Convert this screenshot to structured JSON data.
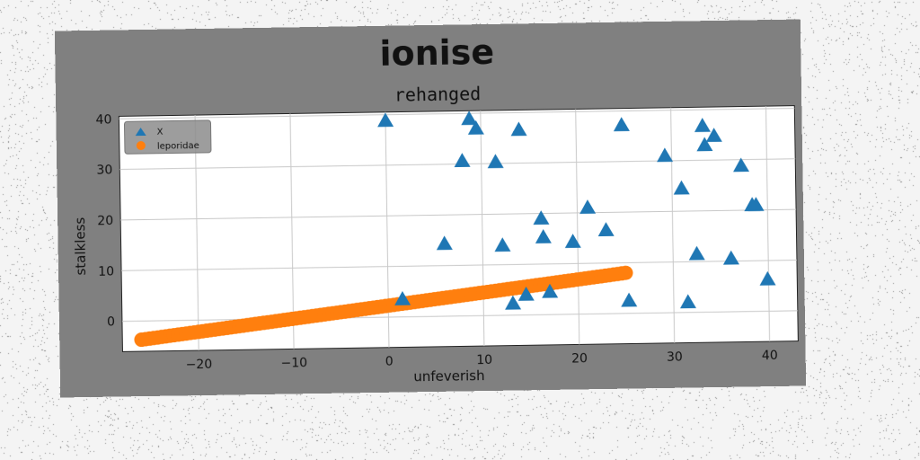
{
  "chart_data": {
    "type": "scatter",
    "title": "ionise",
    "subtitle": "rehanged",
    "xlabel": "unfeverish",
    "ylabel": "stalkless",
    "xlim": [
      -28,
      43
    ],
    "ylim": [
      -6,
      40.5
    ],
    "xticks": [
      -20,
      -10,
      0,
      10,
      20,
      30,
      40
    ],
    "yticks": [
      0,
      10,
      20,
      30,
      40
    ],
    "grid": true,
    "legend_position": "top-left",
    "series": [
      {
        "name": "X",
        "marker": "triangle",
        "color": "#1f77b4",
        "points": [
          [
            0,
            38.8
          ],
          [
            8.8,
            38.9
          ],
          [
            9.5,
            37
          ],
          [
            14.0,
            36.6
          ],
          [
            24.8,
            37.2
          ],
          [
            8.0,
            30.6
          ],
          [
            11.5,
            30.3
          ],
          [
            29.3,
            31.0
          ],
          [
            33.3,
            36.8
          ],
          [
            34.5,
            34.8
          ],
          [
            33.5,
            33.0
          ],
          [
            37.3,
            28.8
          ],
          [
            31.0,
            24.5
          ],
          [
            16.2,
            19.0
          ],
          [
            21.1,
            21.0
          ],
          [
            38.4,
            21.0
          ],
          [
            38.8,
            21.0
          ],
          [
            6.0,
            14.3
          ],
          [
            12.1,
            13.8
          ],
          [
            16.4,
            15.3
          ],
          [
            19.5,
            14.3
          ],
          [
            23.0,
            16.5
          ],
          [
            32.5,
            11.5
          ],
          [
            36.1,
            10.5
          ],
          [
            39.9,
            6.3
          ],
          [
            1.5,
            3.5
          ],
          [
            13.1,
            2.3
          ],
          [
            14.5,
            4.0
          ],
          [
            17.0,
            4.5
          ],
          [
            25.3,
            2.5
          ],
          [
            31.5,
            2.0
          ]
        ]
      },
      {
        "name": "leporidae",
        "marker": "circle",
        "color": "#ff7f0e",
        "line": {
          "x_start": -26,
          "x_end": 25,
          "y_start": -3.7,
          "y_end": 8.0,
          "count": 120
        }
      }
    ]
  }
}
